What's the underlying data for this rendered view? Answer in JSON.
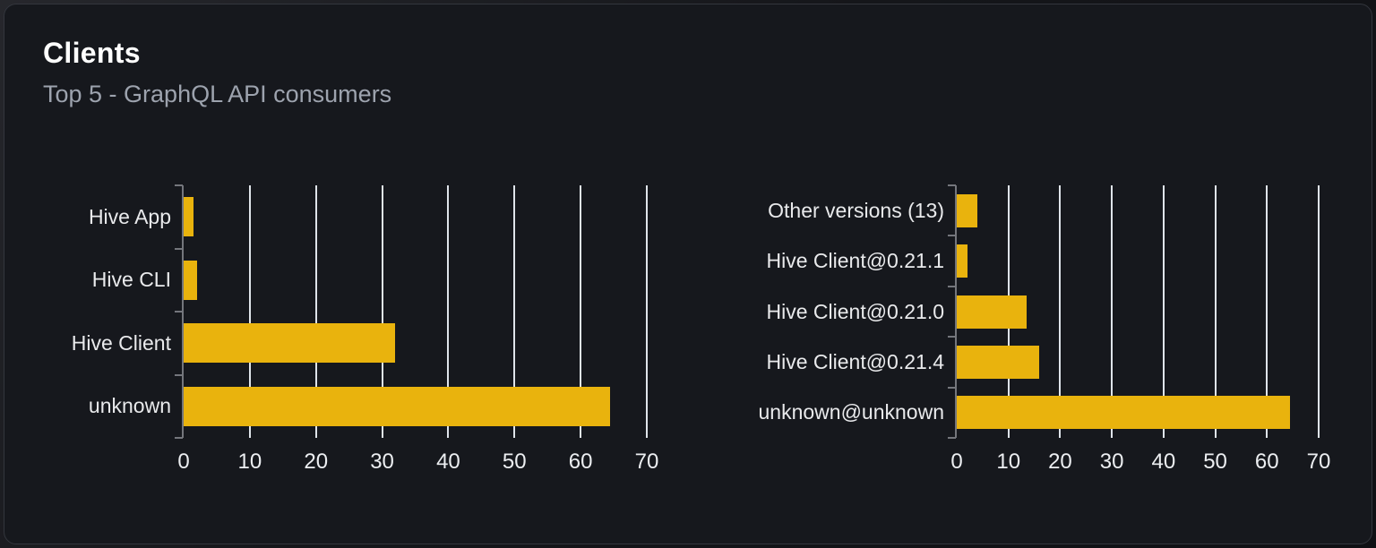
{
  "card": {
    "title": "Clients",
    "subtitle": "Top 5 - GraphQL API consumers"
  },
  "theme": {
    "bar_color": "#e9b30d",
    "card_background": "#16181d",
    "gridline_color": "#dfe4ea",
    "axis_color": "#74767c",
    "category_label_color": "#e9eaec",
    "tick_label_color": "#eceef1",
    "title_color": "#ffffff",
    "subtitle_color": "#9da3ae"
  },
  "chart_data": [
    {
      "type": "bar",
      "orientation": "horizontal",
      "name": "clients-by-name",
      "title": "",
      "categories": [
        "Hive App",
        "Hive CLI",
        "Hive Client",
        "unknown"
      ],
      "values": [
        1.5,
        2,
        32,
        64.5
      ],
      "xlabel": "",
      "ylabel": "",
      "xlim": [
        0,
        70
      ],
      "x_ticks": [
        0,
        10,
        20,
        30,
        40,
        50,
        60,
        70
      ],
      "grid": true,
      "legend": false
    },
    {
      "type": "bar",
      "orientation": "horizontal",
      "name": "clients-by-version",
      "title": "",
      "categories": [
        "Other versions (13)",
        "Hive Client@0.21.1",
        "Hive Client@0.21.0",
        "Hive Client@0.21.4",
        "unknown@unknown"
      ],
      "values": [
        4,
        2,
        13.5,
        16,
        64.5
      ],
      "xlabel": "",
      "ylabel": "",
      "xlim": [
        0,
        70
      ],
      "x_ticks": [
        0,
        10,
        20,
        30,
        40,
        50,
        60,
        70
      ],
      "grid": true,
      "legend": false
    }
  ]
}
